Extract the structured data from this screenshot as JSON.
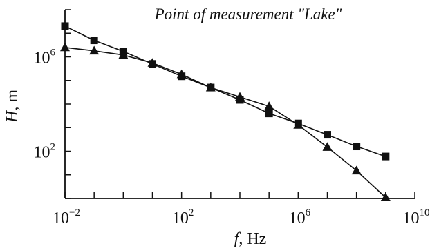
{
  "chart_data": {
    "type": "line",
    "title": "Point of measurement \"Lake\"",
    "xlabel": {
      "var": "f",
      "unit": ", Hz"
    },
    "ylabel": {
      "var": "H",
      "unit": ", m"
    },
    "x_scale": "log10",
    "y_scale": "log10",
    "xlim": [
      0.01,
      10000000000
    ],
    "ylim": [
      1,
      100000000
    ],
    "x_ticks": [
      {
        "base": "10",
        "exp": "−2",
        "value": 0.01
      },
      {
        "base": "10",
        "exp": "2",
        "value": 100
      },
      {
        "base": "10",
        "exp": "6",
        "value": 1000000
      },
      {
        "base": "10",
        "exp": "10",
        "value": 10000000000
      }
    ],
    "y_ticks": [
      {
        "base": "10",
        "exp": "2",
        "value": 100
      },
      {
        "base": "10",
        "exp": "6",
        "value": 1000000
      }
    ],
    "grid": false,
    "legend": "none",
    "series": [
      {
        "marker": "square",
        "color": "#111111",
        "x": [
          0.01,
          0.1,
          1,
          10,
          100,
          1000,
          10000,
          100000,
          1000000,
          10000000,
          100000000,
          1000000000
        ],
        "y": [
          20000000,
          5000000,
          1700000,
          500000,
          150000,
          50000,
          15000,
          4000,
          1500,
          500,
          160,
          60
        ]
      },
      {
        "marker": "triangle",
        "color": "#111111",
        "x": [
          0.01,
          0.1,
          1,
          10,
          100,
          1000,
          10000,
          100000,
          1000000,
          10000000,
          100000000,
          1000000000
        ],
        "y": [
          2500000,
          1800000,
          1200000,
          550000,
          180000,
          50000,
          20000,
          8000,
          1300,
          150,
          15,
          1.1
        ]
      }
    ]
  }
}
